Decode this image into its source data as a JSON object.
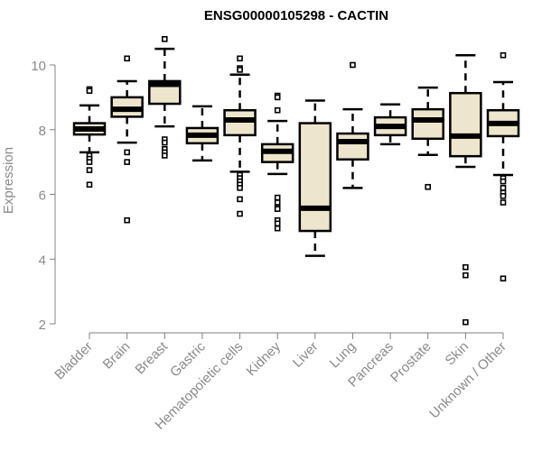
{
  "chart_data": {
    "type": "boxplot",
    "title": "ENSG00000105298 - CACTIN",
    "xlabel": "",
    "ylabel": "Expression",
    "ylim": [
      2,
      10
    ],
    "yticks": [
      "2",
      "4",
      "6",
      "8",
      "10"
    ],
    "ytick_values": [
      2,
      4,
      6,
      8,
      10
    ],
    "grid": false,
    "colors": {
      "box_fill": "#ede6cc",
      "stroke": "#000000",
      "axis": "#808080",
      "label": "#8a8a8a"
    },
    "categories": [
      "Bladder",
      "Brain",
      "Breast",
      "Gastric",
      "Hematopoietic cells",
      "Kidney",
      "Liver",
      "Lung",
      "Pancreas",
      "Prostate",
      "Skin",
      "Unknown / Other"
    ],
    "series": [
      {
        "name": "Bladder",
        "whisker_low": 7.3,
        "q1": 7.85,
        "median": 8.02,
        "q3": 8.2,
        "whisker_high": 8.75,
        "outliers": [
          9.25,
          9.2,
          7.2,
          7.1,
          7.0,
          6.75,
          6.3
        ]
      },
      {
        "name": "Brain",
        "whisker_low": 7.6,
        "q1": 8.4,
        "median": 8.63,
        "q3": 9.0,
        "whisker_high": 9.5,
        "outliers": [
          10.2,
          7.3,
          7.0,
          5.2
        ]
      },
      {
        "name": "Breast",
        "whisker_low": 8.1,
        "q1": 8.8,
        "median": 9.4,
        "q3": 9.5,
        "whisker_high": 10.5,
        "outliers": [
          10.8,
          7.7,
          7.6,
          7.4,
          7.3,
          7.2
        ]
      },
      {
        "name": "Gastric",
        "whisker_low": 7.05,
        "q1": 7.58,
        "median": 7.83,
        "q3": 8.05,
        "whisker_high": 8.72,
        "outliers": []
      },
      {
        "name": "Hematopoietic cells",
        "whisker_low": 6.7,
        "q1": 7.83,
        "median": 8.3,
        "q3": 8.6,
        "whisker_high": 9.7,
        "outliers": [
          10.2,
          9.9,
          9.85,
          6.6,
          6.5,
          6.4,
          6.3,
          6.2,
          5.85,
          5.4
        ]
      },
      {
        "name": "Kidney",
        "whisker_low": 6.63,
        "q1": 7.0,
        "median": 7.33,
        "q3": 7.55,
        "whisker_high": 8.27,
        "outliers": [
          9.05,
          9.0,
          8.6,
          5.9,
          5.75,
          5.6,
          5.55,
          5.2,
          5.1,
          4.95
        ]
      },
      {
        "name": "Liver",
        "whisker_low": 4.1,
        "q1": 4.87,
        "median": 5.57,
        "q3": 8.2,
        "whisker_high": 8.9,
        "outliers": []
      },
      {
        "name": "Lung",
        "whisker_low": 6.2,
        "q1": 7.08,
        "median": 7.63,
        "q3": 7.88,
        "whisker_high": 8.63,
        "outliers": [
          10.0
        ]
      },
      {
        "name": "Pancreas",
        "whisker_low": 7.55,
        "q1": 7.83,
        "median": 8.1,
        "q3": 8.38,
        "whisker_high": 8.78,
        "outliers": []
      },
      {
        "name": "Prostate",
        "whisker_low": 7.22,
        "q1": 7.72,
        "median": 8.3,
        "q3": 8.63,
        "whisker_high": 9.3,
        "outliers": [
          6.23
        ]
      },
      {
        "name": "Skin",
        "whisker_low": 6.85,
        "q1": 7.18,
        "median": 7.8,
        "q3": 9.13,
        "whisker_high": 10.3,
        "outliers": [
          3.75,
          3.5,
          2.05
        ]
      },
      {
        "name": "Unknown / Other",
        "whisker_low": 6.6,
        "q1": 7.8,
        "median": 8.19,
        "q3": 8.6,
        "whisker_high": 9.47,
        "outliers": [
          10.3,
          6.5,
          6.4,
          6.2,
          6.05,
          5.95,
          5.75,
          3.4
        ]
      }
    ]
  }
}
